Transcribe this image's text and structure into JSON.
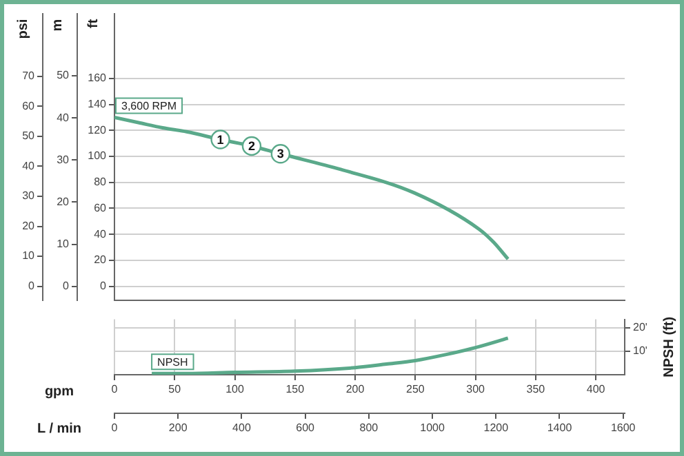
{
  "chart_data": [
    {
      "type": "line",
      "ylabel": "ft",
      "y2label": "m",
      "y3label": "psi",
      "tick_labels": "y",
      "xlim": [
        0,
        424
      ],
      "ylim": [
        -11,
        210
      ],
      "yticks": [
        0,
        20,
        40,
        60,
        80,
        100,
        120,
        140,
        160
      ],
      "y2lim": [
        -3.4,
        64.8
      ],
      "y2ticks": [
        0,
        10,
        20,
        30,
        40,
        50
      ],
      "y3lim": [
        -4.8,
        91
      ],
      "y3ticks": [
        0,
        10,
        20,
        30,
        40,
        50,
        60,
        70
      ],
      "series": [
        {
          "name": "3,600 RPM",
          "color": "#5aa98a",
          "x": [
            0,
            20,
            40,
            60,
            88,
            114,
            138,
            188,
            249,
            303,
            315,
            327
          ],
          "values": [
            130,
            126,
            122,
            119,
            113,
            108,
            102,
            90,
            72,
            44,
            34,
            21
          ]
        }
      ],
      "annotations": [
        {
          "text": "1",
          "x": 88,
          "y": 113
        },
        {
          "text": "2",
          "x": 114,
          "y": 108
        },
        {
          "text": "3",
          "x": 138,
          "y": 102
        }
      ],
      "grid": true,
      "legend": false,
      "marker": "none",
      "line_style": "solid"
    },
    {
      "type": "line",
      "xlabel": "gpm",
      "x2label": "L / min",
      "y2label": "NPSH (ft)",
      "xlim": [
        0,
        424
      ],
      "xticks": [
        0,
        50,
        100,
        150,
        200,
        250,
        300,
        350,
        400
      ],
      "x2lim": [
        0,
        1605
      ],
      "x2ticks": [
        0,
        200,
        400,
        600,
        800,
        1000,
        1200,
        1400,
        1600
      ],
      "y2lim": [
        0,
        23.5
      ],
      "y2ticks": [
        {
          "value": 10,
          "label": "10'"
        },
        {
          "value": 20,
          "label": "20'"
        }
      ],
      "series": [
        {
          "name": "NPSH",
          "color": "#5aa98a",
          "axis": "y2",
          "x": [
            31,
            60,
            100,
            150,
            200,
            226,
            250,
            275,
            300,
            327
          ],
          "values": [
            0.5,
            0.5,
            1,
            1.5,
            3,
            4.5,
            6,
            8.5,
            11.5,
            15.5
          ]
        }
      ],
      "grid": true,
      "legend": false,
      "marker": "none",
      "line_style": "solid"
    }
  ]
}
